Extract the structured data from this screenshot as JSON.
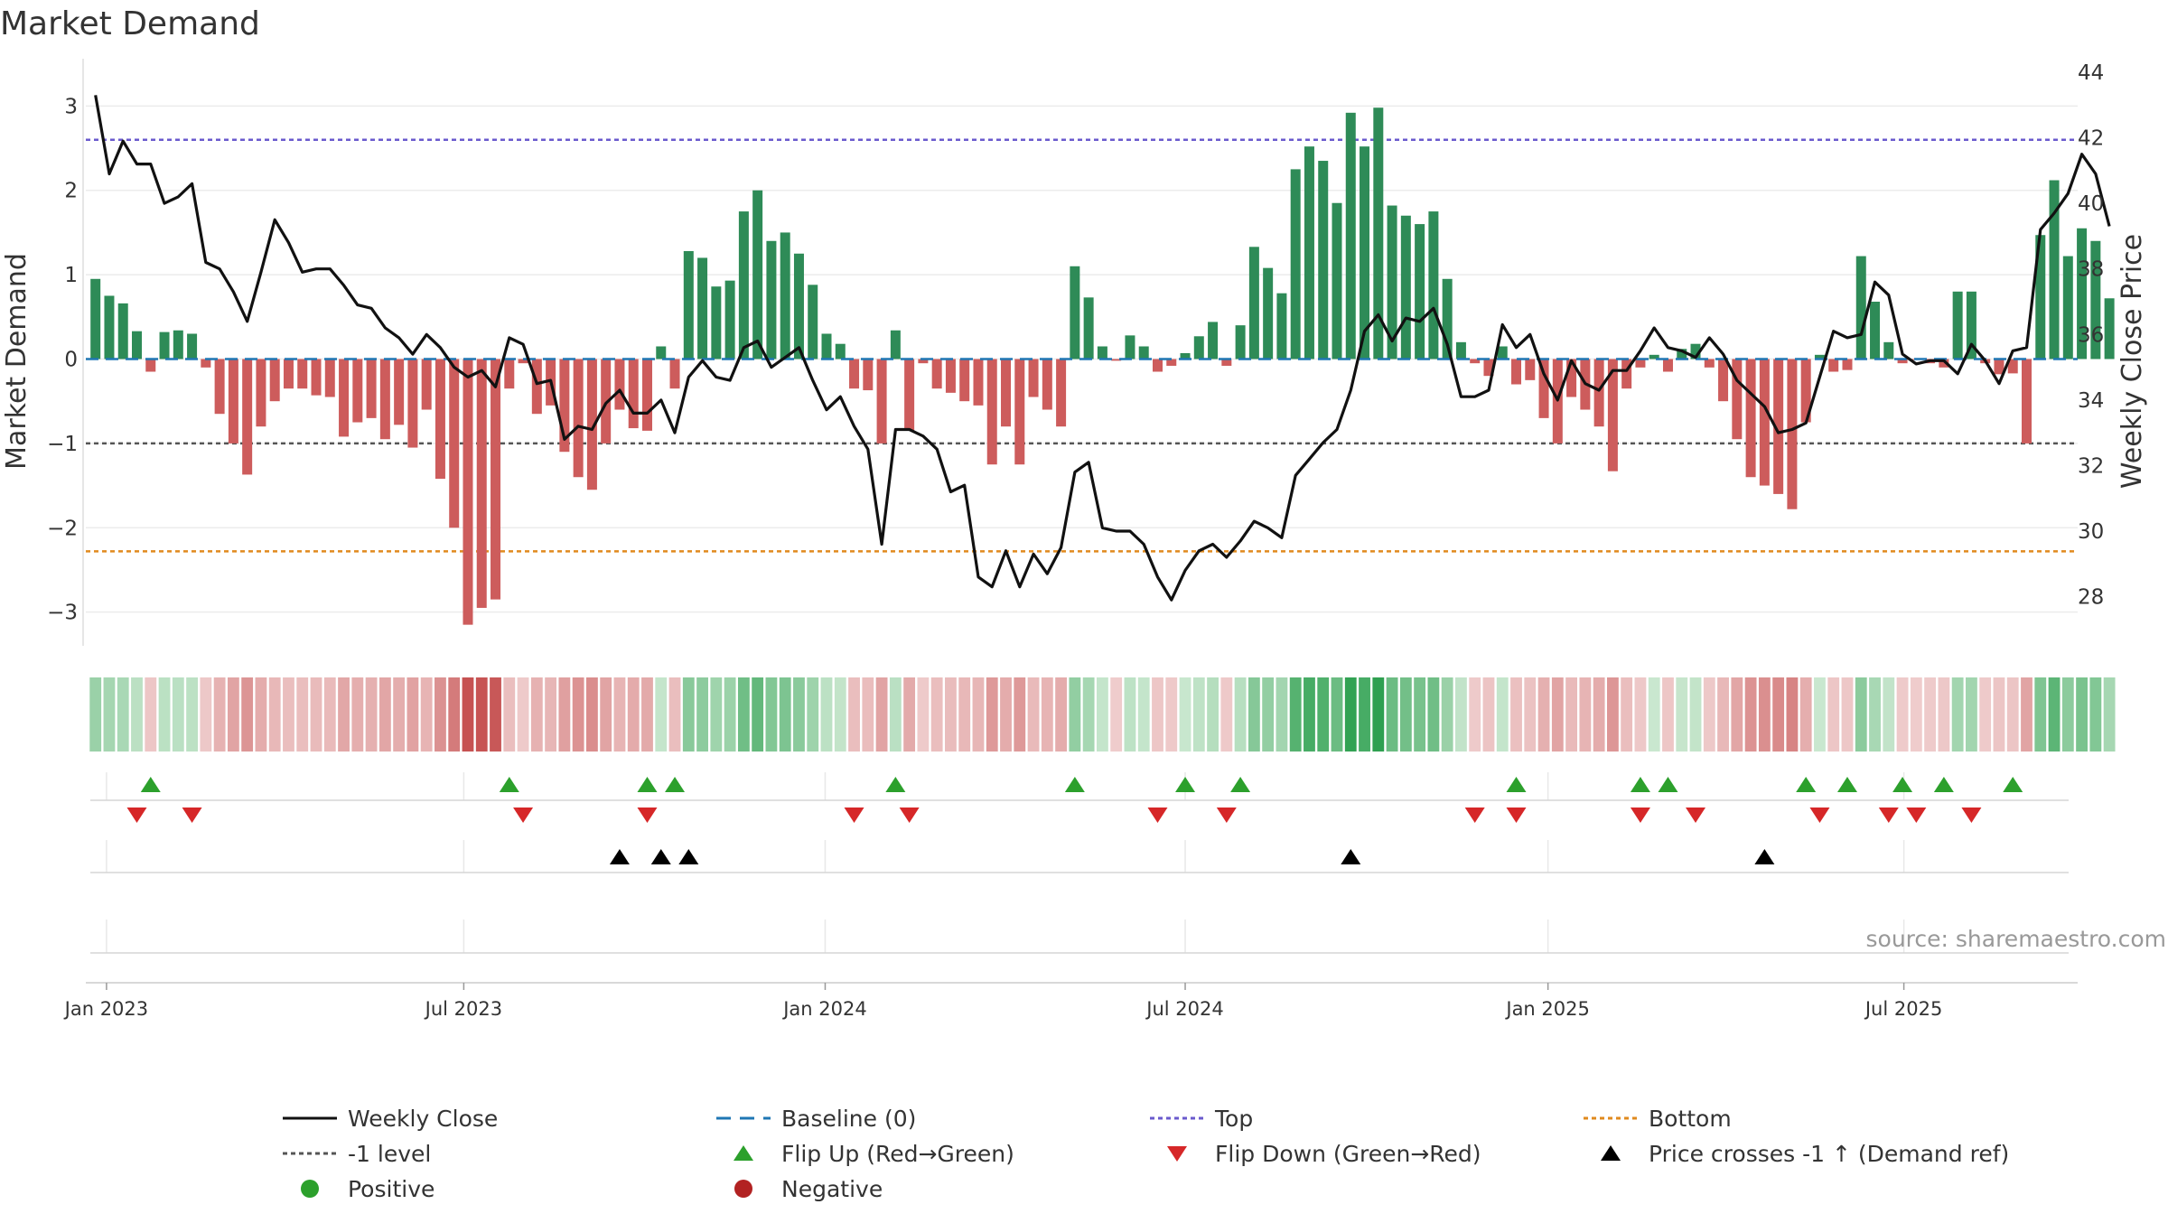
{
  "chart_data": {
    "type": "bar",
    "title": "Market Demand",
    "ylabel_left": "Market Demand",
    "ylabel_right": "Weekly Close Price",
    "ylim_left": [
      -3.4,
      3.4
    ],
    "ylim_right": [
      26.5,
      44
    ],
    "yticks_left": [
      {
        "v": 3,
        "label": "3"
      },
      {
        "v": 2,
        "label": "2"
      },
      {
        "v": 1,
        "label": "1"
      },
      {
        "v": 0,
        "label": "0"
      },
      {
        "v": -1,
        "label": "−1"
      },
      {
        "v": -2,
        "label": "−2"
      },
      {
        "v": -3,
        "label": "−3"
      }
    ],
    "yticks_right": [
      {
        "v": 44,
        "label": "44"
      },
      {
        "v": 42,
        "label": "42"
      },
      {
        "v": 40,
        "label": "40"
      },
      {
        "v": 38,
        "label": "38"
      },
      {
        "v": 36,
        "label": "36"
      },
      {
        "v": 34,
        "label": "34"
      },
      {
        "v": 32,
        "label": "32"
      },
      {
        "v": 30,
        "label": "30"
      },
      {
        "v": 28,
        "label": "28"
      }
    ],
    "x_range": [
      -0.7,
      143.7
    ],
    "xticks": [
      {
        "i": 0.8,
        "label": "Jan 2023"
      },
      {
        "i": 26.7,
        "label": "Jul 2023"
      },
      {
        "i": 52.9,
        "label": "Jan 2024"
      },
      {
        "i": 79,
        "label": "Jul 2024"
      },
      {
        "i": 105.3,
        "label": "Jan 2025"
      },
      {
        "i": 131.1,
        "label": "Jul 2025"
      }
    ],
    "reference_lines": {
      "baseline": 0,
      "top": 2.6,
      "minus_one": -1,
      "bottom": -2.28
    },
    "series": [
      {
        "name": "Market Demand",
        "values": [
          0.95,
          0.75,
          0.66,
          0.33,
          -0.15,
          0.32,
          0.34,
          0.3,
          -0.1,
          -0.65,
          -1.0,
          -1.37,
          -0.8,
          -0.5,
          -0.35,
          -0.35,
          -0.43,
          -0.45,
          -0.92,
          -0.75,
          -0.7,
          -0.95,
          -0.78,
          -1.05,
          -0.6,
          -1.42,
          -2.0,
          -3.15,
          -2.95,
          -2.85,
          -0.35,
          -0.05,
          -0.65,
          -0.55,
          -1.1,
          -1.4,
          -1.55,
          -1.0,
          -0.6,
          -0.82,
          -0.85,
          0.15,
          -0.35,
          1.28,
          1.2,
          0.86,
          0.93,
          1.75,
          2.0,
          1.4,
          1.5,
          1.25,
          0.88,
          0.3,
          0.18,
          -0.35,
          -0.37,
          -1.0,
          0.34,
          -0.85,
          -0.05,
          -0.35,
          -0.4,
          -0.5,
          -0.55,
          -1.25,
          -0.8,
          -1.25,
          -0.45,
          -0.6,
          -0.8,
          1.1,
          0.73,
          0.15,
          -0.02,
          0.28,
          0.15,
          -0.15,
          -0.08,
          0.07,
          0.27,
          0.44,
          -0.08,
          0.4,
          1.33,
          1.08,
          0.78,
          2.25,
          2.52,
          2.35,
          1.85,
          2.92,
          2.52,
          2.98,
          1.82,
          1.7,
          1.6,
          1.75,
          0.95,
          0.2,
          -0.05,
          -0.2,
          0.15,
          -0.3,
          -0.25,
          -0.7,
          -1.0,
          -0.45,
          -0.6,
          -0.8,
          -1.33,
          -0.35,
          -0.1,
          0.05,
          -0.15,
          0.12,
          0.18,
          -0.1,
          -0.5,
          -0.95,
          -1.4,
          -1.5,
          -1.6,
          -1.78,
          -0.75,
          0.05,
          -0.15,
          -0.13,
          1.22,
          0.68,
          0.2,
          -0.05,
          -0.01,
          -0.05,
          -0.1,
          0.8,
          0.8,
          -0.05,
          -0.18,
          -0.17,
          -1.0,
          1.47,
          2.12,
          1.22,
          1.55,
          1.4,
          0.72
        ]
      },
      {
        "name": "Weekly Close",
        "values": [
          43.3,
          40.9,
          41.9,
          41.2,
          41.2,
          40.0,
          40.2,
          40.6,
          38.2,
          38.0,
          37.3,
          36.4,
          37.9,
          39.5,
          38.8,
          37.9,
          38.0,
          38.0,
          37.5,
          36.9,
          36.8,
          36.2,
          35.9,
          35.4,
          36.0,
          35.6,
          35.0,
          34.7,
          34.9,
          34.4,
          35.9,
          35.7,
          34.5,
          34.6,
          32.8,
          33.2,
          33.1,
          33.9,
          34.3,
          33.6,
          33.6,
          34.0,
          33.0,
          34.7,
          35.2,
          34.7,
          34.6,
          35.6,
          35.8,
          35.0,
          35.3,
          35.6,
          34.6,
          33.7,
          34.1,
          33.2,
          32.5,
          29.6,
          33.1,
          33.1,
          32.9,
          32.5,
          31.2,
          31.4,
          28.6,
          28.3,
          29.4,
          28.3,
          29.3,
          28.7,
          29.5,
          31.8,
          32.1,
          30.1,
          30.0,
          30.0,
          29.6,
          28.6,
          27.9,
          28.8,
          29.4,
          29.6,
          29.2,
          29.7,
          30.3,
          30.1,
          29.8,
          31.7,
          32.2,
          32.7,
          33.1,
          34.3,
          36.1,
          36.6,
          35.8,
          36.5,
          36.4,
          36.8,
          35.7,
          34.1,
          34.1,
          34.3,
          36.3,
          35.6,
          36.0,
          34.8,
          34.0,
          35.2,
          34.5,
          34.3,
          34.9,
          34.9,
          35.5,
          36.2,
          35.6,
          35.5,
          35.3,
          35.9,
          35.4,
          34.6,
          34.2,
          33.8,
          33.0,
          33.1,
          33.3,
          34.7,
          36.1,
          35.9,
          36.0,
          37.6,
          37.2,
          35.4,
          35.1,
          35.2,
          35.2,
          34.8,
          35.7,
          35.2,
          34.5,
          35.5,
          35.6,
          39.2,
          39.7,
          40.3,
          41.5,
          40.9,
          39.3
        ]
      }
    ],
    "signal_rows": {
      "flip_up": [
        4,
        30,
        40,
        42,
        58,
        71,
        79,
        83,
        103,
        112,
        114,
        124,
        127,
        131,
        134,
        139
      ],
      "flip_down": [
        3,
        7,
        31,
        40,
        55,
        59,
        77,
        82,
        100,
        103,
        112,
        116,
        125,
        130,
        132,
        136
      ],
      "price_cross": [
        38,
        41,
        43,
        91,
        121
      ]
    },
    "colors": {
      "positive_bar": "#2e8b57",
      "negative_bar": "#cd5c5c",
      "price_line": "#111111",
      "baseline": "#1f77b4",
      "top": "#6a5acd",
      "minus_one": "#555555",
      "bottom": "#e08a1e",
      "flip_up": "#2ca02c",
      "flip_down": "#d62728",
      "price_cross": "#000000",
      "positive_dot": "#2ca02c",
      "negative_dot": "#b22222"
    },
    "legend": [
      {
        "label": "Weekly Close",
        "marker": "line-solid"
      },
      {
        "label": "Baseline (0)",
        "marker": "line-dash-baseline"
      },
      {
        "label": "Top",
        "marker": "line-dot-top"
      },
      {
        "label": "Bottom",
        "marker": "line-dot-bottom"
      },
      {
        "label": "-1 level",
        "marker": "line-dot-minus1"
      },
      {
        "label": "Flip Up (Red→Green)",
        "marker": "triangle-up-green"
      },
      {
        "label": "Flip Down (Green→Red)",
        "marker": "triangle-down-red"
      },
      {
        "label": "Price crosses -1 ↑ (Demand ref)",
        "marker": "triangle-up-black"
      },
      {
        "label": "Positive",
        "marker": "dot-green"
      },
      {
        "label": "Negative",
        "marker": "dot-red"
      }
    ],
    "source": "source: sharemaestro.com"
  }
}
